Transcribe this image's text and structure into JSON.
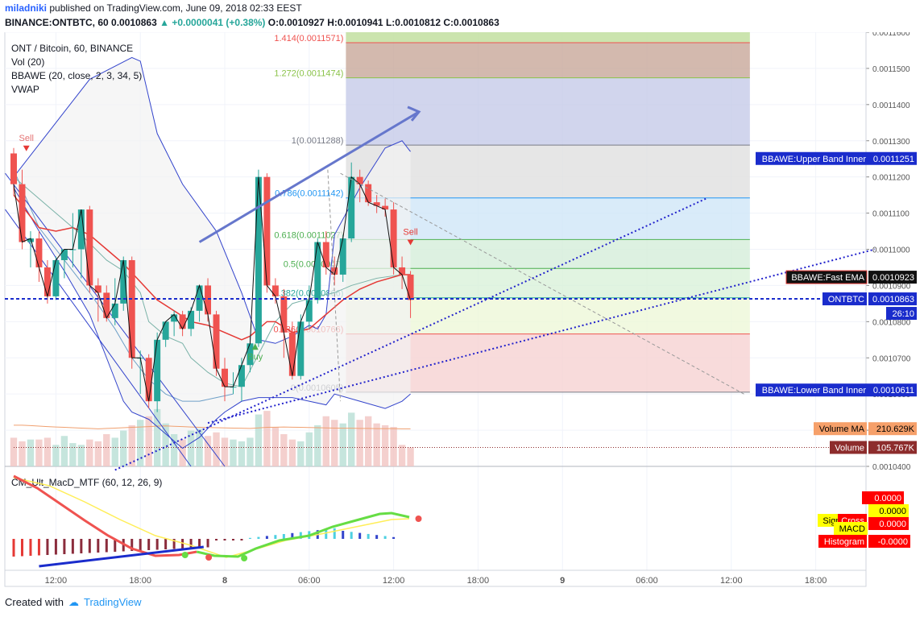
{
  "header": {
    "user": "miladniki",
    "published": "published on TradingView.com, June 09, 2018 02:33 EEST",
    "symbol": "BINANCE:ONTBTC, 60",
    "last": "0.0010863",
    "change": "+0.0000041 (+0.38%)",
    "o_label": "O:",
    "o": "0.0010927",
    "h_label": "H:",
    "h": "0.0010941",
    "l_label": "L:",
    "l": "0.0010812",
    "c_label": "C:",
    "c": "0.0010863"
  },
  "legend": [
    "ONT / Bitcoin, 60, BINANCE",
    "Vol (20)",
    "BBAWE (20, close, 2, 3, 34, 5)",
    "VWAP"
  ],
  "sub_legend": "CM_Ult_MacD_MTF (60, 12, 26, 9)",
  "footer": {
    "created_with": "Created with",
    "brand": "TradingView"
  },
  "colors": {
    "up": "#26a69a",
    "down": "#ef5350",
    "band": "#3344cc",
    "ema": "#e53935",
    "trend": "#2222cc",
    "arrow": "#6677cc",
    "price_line": "#1a2ccc"
  },
  "chart_data": {
    "type": "candlestick",
    "interval": "60",
    "y_axis": {
      "min": 0.00104,
      "max": 0.00116,
      "side": "right",
      "ticks": [
        "0.0011600",
        "0.0011500",
        "0.0011400",
        "0.0011300",
        "0.0011200",
        "0.0011100",
        "0.0011000",
        "0.0010900",
        "0.0010800",
        "0.0010700",
        "0.0010600",
        "0.0010500",
        "0.0010400"
      ]
    },
    "x_axis": {
      "ticks": [
        {
          "label": "12:00",
          "bar": 5
        },
        {
          "label": "18:00",
          "bar": 15
        },
        {
          "label": "8",
          "bar": 25
        },
        {
          "label": "06:00",
          "bar": 35
        },
        {
          "label": "12:00",
          "bar": 45
        },
        {
          "label": "18:00",
          "bar": 55
        },
        {
          "label": "9",
          "bar": 65
        },
        {
          "label": "06:00",
          "bar": 75
        },
        {
          "label": "12:00",
          "bar": 85
        },
        {
          "label": "18:00",
          "bar": 95
        }
      ]
    },
    "candles": [
      [
        0.0011265,
        0.001128,
        0.001115,
        0.001118
      ],
      [
        0.001118,
        0.001122,
        0.0011,
        0.001102
      ],
      [
        0.001102,
        0.001105,
        0.001095,
        0.001103
      ],
      [
        0.001103,
        0.001105,
        0.001091,
        0.001095
      ],
      [
        0.001095,
        0.001097,
        0.001085,
        0.001087
      ],
      [
        0.001087,
        0.001098,
        0.001086,
        0.001097
      ],
      [
        0.001097,
        0.0011,
        0.001092,
        0.0011
      ],
      [
        0.0011,
        0.00111,
        0.001095,
        0.0011
      ],
      [
        0.0011,
        0.001111,
        0.001092,
        0.001111
      ],
      [
        0.001111,
        0.001112,
        0.001088,
        0.00109
      ],
      [
        0.00109,
        0.001092,
        0.00108,
        0.001088
      ],
      [
        0.001088,
        0.00109,
        0.00108,
        0.001081
      ],
      [
        0.001081,
        0.001092,
        0.001079,
        0.001085
      ],
      [
        0.001085,
        0.001098,
        0.001083,
        0.001097
      ],
      [
        0.001097,
        0.001098,
        0.001067,
        0.00107
      ],
      [
        0.00107,
        0.001072,
        0.00106,
        0.00107
      ],
      [
        0.00107,
        0.001071,
        0.001056,
        0.001058
      ],
      [
        0.001058,
        0.001077,
        0.001055,
        0.001075
      ],
      [
        0.001075,
        0.00108,
        0.001073,
        0.00108
      ],
      [
        0.00108,
        0.001083,
        0.001076,
        0.001082
      ],
      [
        0.001082,
        0.001083,
        0.001076,
        0.001078
      ],
      [
        0.001078,
        0.001084,
        0.001076,
        0.001083
      ],
      [
        0.001083,
        0.00109,
        0.00108,
        0.00109
      ],
      [
        0.00109,
        0.001092,
        0.00108,
        0.001082
      ],
      [
        0.001082,
        0.001083,
        0.001065,
        0.001067
      ],
      [
        0.001067,
        0.00107,
        0.001058,
        0.001062
      ],
      [
        0.001062,
        0.001066,
        0.00106,
        0.001062
      ],
      [
        0.001062,
        0.00107,
        0.001058,
        0.001068
      ],
      [
        0.001068,
        0.001076,
        0.001066,
        0.001074
      ],
      [
        0.001074,
        0.001122,
        0.001073,
        0.00112
      ],
      [
        0.00112,
        0.001121,
        0.001088,
        0.00109
      ],
      [
        0.00109,
        0.001092,
        0.001085,
        0.001087
      ],
      [
        0.001087,
        0.001089,
        0.00107,
        0.001077
      ],
      [
        0.001077,
        0.00108,
        0.001064,
        0.001065
      ],
      [
        0.001065,
        0.001082,
        0.001064,
        0.00108
      ],
      [
        0.00108,
        0.00109,
        0.001078,
        0.001086
      ],
      [
        0.001086,
        0.001103,
        0.001085,
        0.001102
      ],
      [
        0.001102,
        0.001105,
        0.001093,
        0.001095
      ],
      [
        0.001095,
        0.001098,
        0.00109,
        0.001093
      ],
      [
        0.001093,
        0.001104,
        0.001091,
        0.001103
      ],
      [
        0.001103,
        0.001124,
        0.001102,
        0.00112
      ],
      [
        0.00112,
        0.001122,
        0.001113,
        0.001118
      ],
      [
        0.001118,
        0.001119,
        0.001112,
        0.001113
      ],
      [
        0.001113,
        0.001115,
        0.00111,
        0.001112
      ],
      [
        0.001112,
        0.001114,
        0.001109,
        0.001111
      ],
      [
        0.001111,
        0.001113,
        0.001093,
        0.001095
      ],
      [
        0.001095,
        0.001098,
        0.001089,
        0.001093
      ],
      [
        0.001093,
        0.001094,
        0.001081,
        0.001086
      ]
    ],
    "fibonacci": [
      {
        "label": "1.414(0.0011571)",
        "value": 0.0011571,
        "color": "#ef5350"
      },
      {
        "label": "1.272(0.0011474)",
        "value": 0.0011474,
        "color": "#8bc34a"
      },
      {
        "label": "1(0.0011288)",
        "value": 0.0011288,
        "color": "#787b86"
      },
      {
        "label": "0.786(0.0011142)",
        "value": 0.0011142,
        "color": "#2196f3"
      },
      {
        "label": "0.618(0.0011027)",
        "value": 0.0011027,
        "color": "#4caf50"
      },
      {
        "label": "0.5(0.0010947)",
        "value": 0.0010947,
        "color": "#4caf50"
      },
      {
        "label": "0.382(0.0010866)",
        "value": 0.0010866,
        "color": "#26a69a"
      },
      {
        "label": "0.236(0.0010766)",
        "value": 0.0010766,
        "color": "#ef5350"
      },
      {
        "label": "0(0.0010605)",
        "value": 0.0010605,
        "color": "#787b86"
      }
    ],
    "upper_band": [
      [
        0,
        0.00112
      ],
      [
        6,
        0.001138
      ],
      [
        9,
        0.001147
      ],
      [
        14,
        0.001153
      ],
      [
        15,
        0.001152
      ],
      [
        17,
        0.001132
      ],
      [
        20,
        0.001118
      ],
      [
        24,
        0.001105
      ],
      [
        27,
        0.001088
      ],
      [
        29,
        0.001075
      ],
      [
        31,
        0.001074
      ],
      [
        33,
        0.001076
      ],
      [
        35,
        0.001079
      ],
      [
        36,
        0.001078
      ],
      [
        37,
        0.001082
      ],
      [
        38,
        0.001104
      ],
      [
        41,
        0.001117
      ],
      [
        44,
        0.001128
      ],
      [
        46,
        0.00113
      ],
      [
        47,
        0.001127
      ]
    ],
    "middle_band": [
      [
        0,
        0.00112
      ],
      [
        4,
        0.001112
      ],
      [
        8,
        0.001104
      ],
      [
        11,
        0.001097
      ],
      [
        13,
        0.001094
      ],
      [
        15,
        0.001088
      ],
      [
        16,
        0.00108
      ],
      [
        18,
        0.001076
      ],
      [
        20,
        0.001074
      ],
      [
        21,
        0.00107
      ],
      [
        23,
        0.001066
      ],
      [
        25,
        0.001063
      ],
      [
        27,
        0.001062
      ],
      [
        29,
        0.001071
      ],
      [
        31,
        0.00108
      ],
      [
        33,
        0.001085
      ],
      [
        36,
        0.001087
      ],
      [
        38,
        0.001088
      ],
      [
        40,
        0.00109
      ],
      [
        43,
        0.001092
      ],
      [
        46,
        0.001093
      ]
    ],
    "lower_band": [
      [
        0,
        0.001117
      ],
      [
        3,
        0.001105
      ],
      [
        6,
        0.001094
      ],
      [
        9,
        0.001082
      ],
      [
        11,
        0.00107
      ],
      [
        13,
        0.001058
      ],
      [
        14,
        0.001055
      ],
      [
        16,
        0.001053
      ],
      [
        18,
        0.001049
      ],
      [
        20,
        0.001045
      ],
      [
        22,
        0.001048
      ],
      [
        24,
        0.001053
      ],
      [
        25,
        0.001055
      ],
      [
        27,
        0.001058
      ],
      [
        29,
        0.001059
      ],
      [
        31,
        0.001059
      ],
      [
        33,
        0.001059
      ],
      [
        35,
        0.001058
      ],
      [
        37,
        0.001057
      ],
      [
        38,
        0.00106
      ],
      [
        41,
        0.001058
      ],
      [
        44,
        0.001056
      ],
      [
        46,
        0.001058
      ],
      [
        47,
        0.00106
      ]
    ],
    "fast_ema": [
      [
        0,
        0.001115
      ],
      [
        3,
        0.001106
      ],
      [
        5,
        0.001105
      ],
      [
        7,
        0.001106
      ],
      [
        9,
        0.001104
      ],
      [
        11,
        0.0011
      ],
      [
        13,
        0.001096
      ],
      [
        15,
        0.001091
      ],
      [
        17,
        0.001086
      ],
      [
        19,
        0.001083
      ],
      [
        21,
        0.00108
      ],
      [
        23,
        0.001079
      ],
      [
        25,
        0.001077
      ],
      [
        27,
        0.001075
      ],
      [
        28,
        0.001076
      ],
      [
        30,
        0.00108
      ],
      [
        31,
        0.00108
      ],
      [
        33,
        0.001077
      ],
      [
        35,
        0.001078
      ],
      [
        37,
        0.001082
      ],
      [
        39,
        0.001086
      ],
      [
        41,
        0.001089
      ],
      [
        43,
        0.001091
      ],
      [
        46,
        0.001093
      ],
      [
        47,
        0.001093
      ]
    ],
    "vwap": [
      [
        0,
        0.001122
      ],
      [
        3,
        0.001106
      ],
      [
        6,
        0.001097
      ],
      [
        9,
        0.001088
      ],
      [
        12,
        0.001078
      ],
      [
        14,
        0.00107
      ],
      [
        16,
        0.001064
      ],
      [
        18,
        0.00106
      ],
      [
        20,
        0.001058
      ],
      [
        22,
        0.001058
      ],
      [
        24,
        0.001059
      ],
      [
        26,
        0.00106
      ]
    ],
    "labels": {
      "upper_band": "BBAWE:Upper Band Inner",
      "upper_value": "0.0011251",
      "fast_ema": "BBAWE:Fast EMA",
      "fast_value": "0.0010923",
      "symbol": "ONTBTC",
      "symbol_value": "0.0010863",
      "countdown": "26:10",
      "lower_band": "BBAWE:Lower Band Inner",
      "lower_value": "0.0010611",
      "volume_ma": "Volume MA",
      "volume_ma_value": "210.629K",
      "volume": "Volume",
      "volume_value": "105.767K",
      "sell": "Sell",
      "buy": "Buy"
    },
    "volume": {
      "unit": "K",
      "values": [
        160,
        140,
        150,
        150,
        160,
        120,
        170,
        130,
        120,
        150,
        140,
        180,
        160,
        200,
        230,
        260,
        280,
        320,
        240,
        180,
        150,
        200,
        210,
        170,
        190,
        160,
        150,
        140,
        160,
        290,
        310,
        220,
        180,
        150,
        140,
        190,
        230,
        280,
        260,
        240,
        300,
        260,
        280,
        240,
        230,
        220,
        120,
        106
      ],
      "ma": [
        230,
        230,
        228,
        225,
        222,
        220,
        218,
        216,
        214,
        212,
        210,
        212,
        214,
        216,
        218,
        220,
        222,
        225,
        226,
        224,
        222,
        220,
        218,
        217,
        216,
        215,
        214,
        213,
        212,
        215,
        218,
        219,
        220,
        219,
        218,
        217,
        216,
        215,
        214,
        213,
        213,
        212,
        212,
        211,
        211,
        211,
        210,
        210
      ]
    },
    "macd": {
      "labels": {
        "signal": "Signal",
        "cross": "Cross",
        "macd": "MACD",
        "histogram": "Histogram"
      },
      "values": {
        "macd": "0.0000",
        "signal": "0.0000",
        "cross": "0.0000",
        "histogram": "-0.0000"
      }
    }
  }
}
